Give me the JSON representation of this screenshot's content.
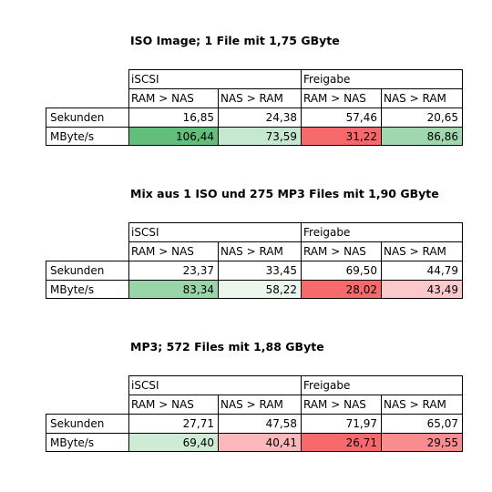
{
  "sections": [
    {
      "title": "ISO Image; 1 File mit 1,75 GByte",
      "groups": [
        "iSCSI",
        "Freigabe"
      ],
      "columns": [
        "RAM > NAS",
        "NAS > RAM",
        "RAM > NAS",
        "NAS > RAM"
      ],
      "rows": [
        {
          "label": "Sekunden",
          "values": [
            "16,85",
            "24,38",
            "57,46",
            "20,65"
          ]
        },
        {
          "label": "MByte/s",
          "values": [
            "106,44",
            "73,59",
            "31,22",
            "86,86"
          ]
        }
      ],
      "mbyte_colors": [
        "#63be7b",
        "#c6e8d0",
        "#f8696b",
        "#9fd7ae"
      ]
    },
    {
      "title": "Mix aus 1 ISO und 275 MP3 Files mit 1,90 GByte",
      "groups": [
        "iSCSI",
        "Freigabe"
      ],
      "columns": [
        "RAM > NAS",
        "NAS > RAM",
        "RAM > NAS",
        "NAS > RAM"
      ],
      "rows": [
        {
          "label": "Sekunden",
          "values": [
            "23,37",
            "33,45",
            "69,50",
            "44,79"
          ]
        },
        {
          "label": "MByte/s",
          "values": [
            "83,34",
            "58,22",
            "28,02",
            "43,49"
          ]
        }
      ],
      "mbyte_colors": [
        "#9ad5a9",
        "#ebf6ee",
        "#f8696b",
        "#fbc9cb"
      ]
    },
    {
      "title": "MP3; 572 Files mit 1,88 GByte",
      "groups": [
        "iSCSI",
        "Freigabe"
      ],
      "columns": [
        "RAM > NAS",
        "NAS > RAM",
        "RAM > NAS",
        "NAS > RAM"
      ],
      "rows": [
        {
          "label": "Sekunden",
          "values": [
            "27,71",
            "47,58",
            "71,97",
            "65,07"
          ]
        },
        {
          "label": "MByte/s",
          "values": [
            "69,40",
            "40,41",
            "26,71",
            "29,55"
          ]
        }
      ],
      "mbyte_colors": [
        "#cdebd5",
        "#fbb8ba",
        "#f8696b",
        "#f98c8f"
      ]
    }
  ]
}
